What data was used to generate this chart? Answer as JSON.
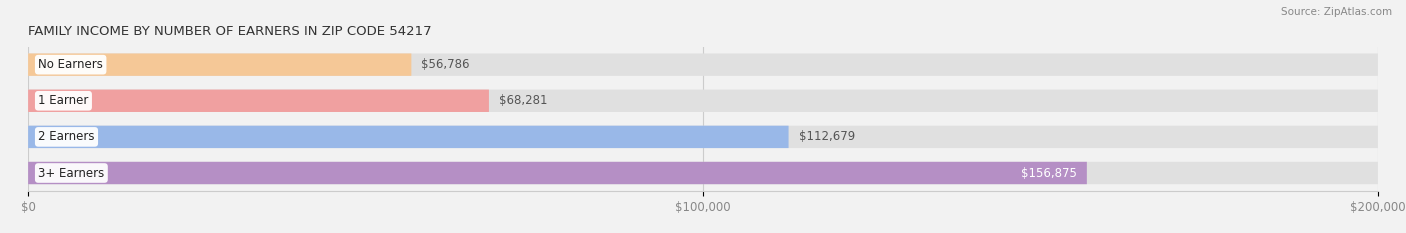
{
  "title": "FAMILY INCOME BY NUMBER OF EARNERS IN ZIP CODE 54217",
  "source": "Source: ZipAtlas.com",
  "categories": [
    "No Earners",
    "1 Earner",
    "2 Earners",
    "3+ Earners"
  ],
  "values": [
    56786,
    68281,
    112679,
    156875
  ],
  "bar_colors": [
    "#f5c897",
    "#f0a0a0",
    "#99b8e8",
    "#b58fc5"
  ],
  "value_labels": [
    "$56,786",
    "$68,281",
    "$112,679",
    "$156,875"
  ],
  "value_label_inside": [
    false,
    false,
    false,
    true
  ],
  "xlim": [
    0,
    200000
  ],
  "xticks": [
    0,
    100000,
    200000
  ],
  "xtick_labels": [
    "$0",
    "$100,000",
    "$200,000"
  ],
  "background_color": "#f2f2f2",
  "bar_background_color": "#e0e0e0",
  "title_fontsize": 9.5,
  "label_fontsize": 8.5,
  "value_fontsize": 8.5,
  "tick_fontsize": 8.5,
  "bar_height": 0.62
}
